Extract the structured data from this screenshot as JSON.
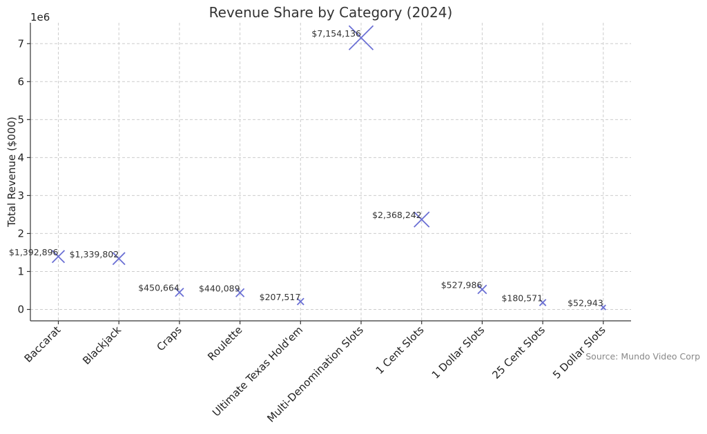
{
  "chart_data": {
    "type": "scatter",
    "title": "Revenue Share by Category (2024)",
    "xlabel": "",
    "ylabel": "Total Revenue ($000)",
    "y_offset_label": "1e6",
    "ylim": [
      -300000,
      7550000
    ],
    "yticks": [
      0,
      1000000,
      2000000,
      3000000,
      4000000,
      5000000,
      6000000,
      7000000
    ],
    "ytick_labels": [
      "0",
      "1",
      "2",
      "3",
      "4",
      "5",
      "6",
      "7"
    ],
    "grid": true,
    "categories": [
      "Baccarat",
      "Blackjack",
      "Craps",
      "Roulette",
      "Ultimate Texas Hold'em",
      "Multi-Denomination Slots",
      "1 Cent Slots",
      "1 Dollar Slots",
      "25 Cent Slots",
      "5 Dollar Slots"
    ],
    "values": [
      1392896,
      1339802,
      450664,
      440089,
      207517,
      7154136,
      2368242,
      527986,
      180571,
      52943
    ],
    "value_labels": [
      "$1,392,896",
      "$1,339,802",
      "$450,664",
      "$440,089",
      "$207,517",
      "$7,154,136",
      "$2,368,242",
      "$527,986",
      "$180,571",
      "$52,943"
    ],
    "marker": "x",
    "marker_color": "#6a6fd4",
    "source_note": "Source: Mundo Video Corp"
  }
}
